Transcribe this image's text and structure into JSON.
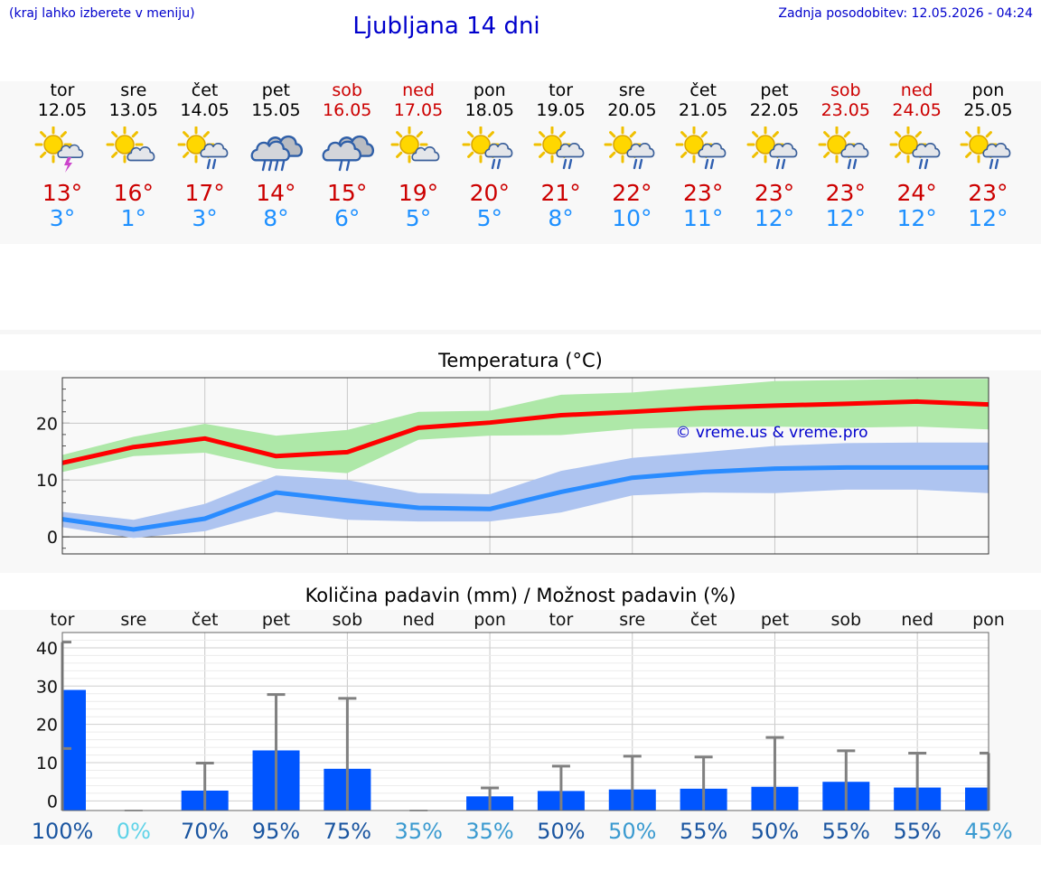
{
  "header": {
    "hint": "(kraj lahko izberete v meniju)",
    "title": "Ljubljana 14 dni",
    "updated": "Zadnja posodobitev: 12.05.2026 - 04:24"
  },
  "colors": {
    "link": "#0000cc",
    "max_temp": "#cc0000",
    "min_temp": "#1e90ff",
    "weekend": "#cc0000",
    "max_band": "#aee8a8",
    "min_band": "#aec4f0",
    "max_line": "#ff0000",
    "min_line": "#2a8cff",
    "bar": "#0055ff",
    "whisker": "#808080"
  },
  "days": [
    {
      "name": "tor",
      "date": "12.05",
      "weekend": false,
      "icon": "sun-cloud-thunder-icon",
      "tmax": "13°",
      "tmin": "3°"
    },
    {
      "name": "sre",
      "date": "13.05",
      "weekend": false,
      "icon": "sun-cloud-icon",
      "tmax": "16°",
      "tmin": "1°"
    },
    {
      "name": "čet",
      "date": "14.05",
      "weekend": false,
      "icon": "sun-cloud-rain-icon",
      "tmax": "17°",
      "tmin": "3°"
    },
    {
      "name": "pet",
      "date": "15.05",
      "weekend": false,
      "icon": "cloud-heavy-rain-icon",
      "tmax": "14°",
      "tmin": "8°"
    },
    {
      "name": "sob",
      "date": "16.05",
      "weekend": true,
      "icon": "cloud-rain-icon",
      "tmax": "15°",
      "tmin": "6°"
    },
    {
      "name": "ned",
      "date": "17.05",
      "weekend": true,
      "icon": "sun-cloud-icon",
      "tmax": "19°",
      "tmin": "5°"
    },
    {
      "name": "pon",
      "date": "18.05",
      "weekend": false,
      "icon": "sun-cloud-rain-icon",
      "tmax": "20°",
      "tmin": "5°"
    },
    {
      "name": "tor",
      "date": "19.05",
      "weekend": false,
      "icon": "sun-cloud-rain-icon",
      "tmax": "21°",
      "tmin": "8°"
    },
    {
      "name": "sre",
      "date": "20.05",
      "weekend": false,
      "icon": "sun-cloud-rain-icon",
      "tmax": "22°",
      "tmin": "10°"
    },
    {
      "name": "čet",
      "date": "21.05",
      "weekend": false,
      "icon": "sun-cloud-rain-icon",
      "tmax": "23°",
      "tmin": "11°"
    },
    {
      "name": "pet",
      "date": "22.05",
      "weekend": false,
      "icon": "sun-cloud-rain-icon",
      "tmax": "23°",
      "tmin": "12°"
    },
    {
      "name": "sob",
      "date": "23.05",
      "weekend": true,
      "icon": "sun-cloud-rain-icon",
      "tmax": "23°",
      "tmin": "12°"
    },
    {
      "name": "ned",
      "date": "24.05",
      "weekend": true,
      "icon": "sun-cloud-rain-icon",
      "tmax": "24°",
      "tmin": "12°"
    },
    {
      "name": "pon",
      "date": "25.05",
      "weekend": false,
      "icon": "sun-cloud-rain-icon",
      "tmax": "23°",
      "tmin": "12°"
    }
  ],
  "chart_data": [
    {
      "type": "line",
      "title": "Temperatura (°C)",
      "watermark": "© vreme.us & vreme.pro",
      "ylim": [
        -3,
        28
      ],
      "yticks": [
        "0",
        "10",
        "20"
      ],
      "ytick_values": [
        0,
        10,
        20
      ],
      "grid": true,
      "x": [
        0,
        1,
        2,
        3,
        4,
        5,
        6,
        7,
        8,
        9,
        10,
        11,
        12,
        13
      ],
      "series": [
        {
          "role": "max",
          "values": [
            13,
            15.8,
            17.3,
            14.2,
            14.9,
            19.2,
            20.1,
            21.4,
            22,
            22.7,
            23.1,
            23.4,
            23.8,
            23.3
          ],
          "band_high": [
            14.4,
            17.6,
            19.9,
            17.8,
            18.8,
            22,
            22.2,
            25,
            25.4,
            26.4,
            27.4,
            27.6,
            27.8,
            27.8
          ],
          "band_low": [
            11.4,
            14.2,
            14.8,
            12,
            11.2,
            17.1,
            17.8,
            17.9,
            19,
            19.4,
            19.4,
            19.2,
            19.4,
            18.9
          ]
        },
        {
          "role": "min",
          "values": [
            3.1,
            1.3,
            3.2,
            7.8,
            6.4,
            5.1,
            4.9,
            7.9,
            10.4,
            11.4,
            12,
            12.2,
            12.2,
            12.2
          ],
          "band_high": [
            4.4,
            3,
            5.8,
            10.8,
            10,
            7.7,
            7.5,
            11.6,
            13.9,
            14.9,
            16,
            16.5,
            16.6,
            16.6
          ],
          "band_low": [
            1.7,
            -0.2,
            1,
            4.4,
            3,
            2.7,
            2.7,
            4.3,
            7.3,
            7.8,
            7.7,
            8.3,
            8.3,
            7.7
          ]
        }
      ]
    },
    {
      "type": "bar",
      "title": "Količina padavin (mm) / Možnost padavin (%)",
      "categories": [
        "tor",
        "sre",
        "čet",
        "pet",
        "sob",
        "ned",
        "pon",
        "tor",
        "sre",
        "čet",
        "pet",
        "sob",
        "ned",
        "pon"
      ],
      "ylim": [
        -2.5,
        44
      ],
      "yticks": [
        "0",
        "10",
        "20",
        "30",
        "40"
      ],
      "ytick_values": [
        0,
        10,
        20,
        30,
        40
      ],
      "grid": true,
      "values": [
        29,
        0,
        2.7,
        13.2,
        8.4,
        0,
        1.2,
        2.6,
        3,
        3.2,
        3.7,
        5,
        3.5,
        3.5
      ],
      "whisker_high": [
        41.5,
        0,
        9.9,
        27.8,
        26.8,
        0,
        3.4,
        9.1,
        11.7,
        11.5,
        16.6,
        13.1,
        12.5,
        12.5
      ],
      "whisker_low": [
        13.7,
        0,
        0,
        0,
        0,
        0,
        0,
        0,
        0,
        0,
        0,
        0,
        0,
        0
      ],
      "probability": [
        "100%",
        "0%",
        "70%",
        "95%",
        "75%",
        "35%",
        "35%",
        "50%",
        "50%",
        "55%",
        "50%",
        "55%",
        "55%",
        "45%"
      ],
      "probability_colors": [
        "#1a55a0",
        "#5fd3e8",
        "#1a55a0",
        "#1a55a0",
        "#1a55a0",
        "#3a9ad0",
        "#3a9ad0",
        "#1a55a0",
        "#3a9ad0",
        "#1a55a0",
        "#1a55a0",
        "#1a55a0",
        "#1a55a0",
        "#3a9ad0"
      ]
    }
  ]
}
